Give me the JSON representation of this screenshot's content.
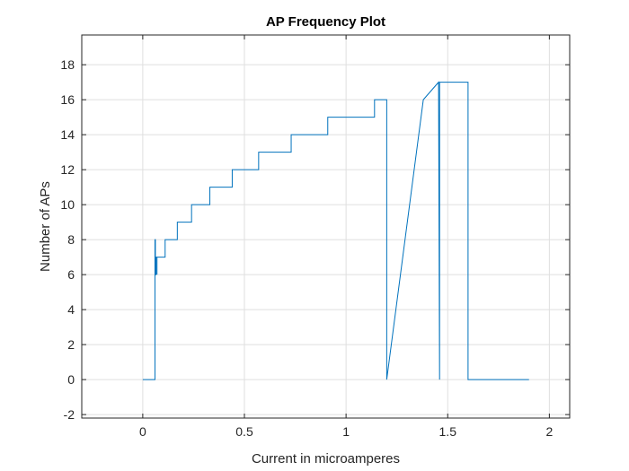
{
  "chart_data": {
    "type": "line",
    "title": "AP Frequency Plot",
    "xlabel": "Current in microamperes",
    "ylabel": "Number of APs",
    "xlim": [
      -0.3,
      2.1
    ],
    "ylim": [
      -2.2,
      19.7
    ],
    "xticks": [
      0,
      0.5,
      1,
      1.5,
      2
    ],
    "xtick_labels": [
      "0",
      "0.5",
      "1",
      "1.5",
      "2"
    ],
    "yticks": [
      -2,
      0,
      2,
      4,
      6,
      8,
      10,
      12,
      14,
      16,
      18
    ],
    "ytick_labels": [
      "-2",
      "0",
      "2",
      "4",
      "6",
      "8",
      "10",
      "12",
      "14",
      "16",
      "18"
    ],
    "grid": true,
    "line_color": "#0072BD",
    "grid_color": "#dfdfdf",
    "series": [
      {
        "x": [
          0,
          0.06,
          0.06,
          0.062,
          0.062,
          0.065,
          0.065,
          0.07,
          0.07,
          0.07,
          0.07,
          0.08,
          0.08,
          0.11,
          0.11,
          0.17,
          0.17,
          0.24,
          0.24,
          0.33,
          0.33,
          0.44,
          0.44,
          0.57,
          0.57,
          0.73,
          0.73,
          0.91,
          0.91,
          1.14,
          1.14,
          1.19,
          1.19,
          1.2,
          1.2,
          1.38,
          1.38,
          1.455,
          1.455,
          1.46,
          1.46,
          1.465,
          1.465,
          1.6,
          1.6,
          1.9
        ],
        "y": [
          0,
          0,
          8,
          8,
          6,
          6,
          7,
          7,
          6,
          6,
          7,
          7,
          7,
          7,
          8,
          8,
          9,
          9,
          10,
          10,
          11,
          11,
          12,
          12,
          13,
          13,
          14,
          14,
          15,
          15,
          16,
          16,
          16,
          16,
          0,
          16,
          16,
          17,
          17,
          0,
          17,
          17,
          17,
          17,
          0,
          0
        ]
      }
    ]
  }
}
